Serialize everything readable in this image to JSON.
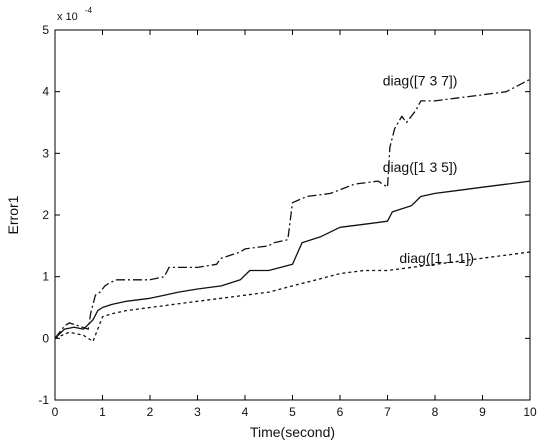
{
  "chart_data": {
    "type": "line",
    "title": "",
    "xlabel": "Time(second)",
    "ylabel": "Error1",
    "y_multiplier_label": "x 10",
    "y_multiplier_exponent": "-4",
    "xlim": [
      0,
      10
    ],
    "ylim": [
      -1,
      5
    ],
    "x_ticks": [
      "0",
      "1",
      "2",
      "3",
      "4",
      "5",
      "6",
      "7",
      "8",
      "9",
      "10"
    ],
    "y_ticks": [
      "-1",
      "0",
      "1",
      "2",
      "3",
      "4",
      "5"
    ],
    "grid": false,
    "colors": {
      "line": "#111111",
      "axes": "#000000"
    },
    "series": [
      {
        "name": "diag([7 3 7])",
        "style": "dash-dot",
        "x": [
          0,
          0.2,
          0.3,
          0.5,
          0.7,
          0.75,
          0.85,
          0.95,
          1.05,
          1.15,
          1.3,
          1.5,
          2.0,
          2.3,
          2.4,
          3.0,
          3.4,
          3.5,
          3.9,
          4.0,
          4.5,
          4.6,
          4.9,
          5.0,
          5.3,
          5.8,
          6.3,
          6.8,
          7.0,
          7.05,
          7.15,
          7.3,
          7.4,
          7.6,
          7.7,
          8.0,
          8.5,
          9.0,
          9.5,
          10.0
        ],
        "y": [
          0.0,
          0.2,
          0.25,
          0.2,
          0.15,
          0.4,
          0.7,
          0.75,
          0.85,
          0.9,
          0.95,
          0.95,
          0.95,
          1.0,
          1.15,
          1.15,
          1.2,
          1.3,
          1.4,
          1.45,
          1.5,
          1.55,
          1.6,
          2.2,
          2.3,
          2.35,
          2.5,
          2.55,
          2.45,
          3.1,
          3.4,
          3.6,
          3.5,
          3.7,
          3.85,
          3.85,
          3.9,
          3.95,
          4.0,
          4.2
        ]
      },
      {
        "name": "diag([1 3 5])",
        "style": "solid",
        "x": [
          0,
          0.2,
          0.4,
          0.6,
          0.8,
          0.9,
          1.0,
          1.2,
          1.5,
          2.0,
          2.3,
          2.6,
          3.0,
          3.5,
          3.9,
          4.1,
          4.5,
          5.0,
          5.2,
          5.6,
          6.0,
          6.5,
          7.0,
          7.1,
          7.5,
          7.7,
          8.0,
          8.5,
          9.0,
          9.5,
          10.0
        ],
        "y": [
          0.0,
          0.15,
          0.18,
          0.15,
          0.3,
          0.45,
          0.5,
          0.55,
          0.6,
          0.65,
          0.7,
          0.75,
          0.8,
          0.85,
          0.95,
          1.1,
          1.1,
          1.2,
          1.55,
          1.65,
          1.8,
          1.85,
          1.9,
          2.05,
          2.15,
          2.3,
          2.35,
          2.4,
          2.45,
          2.5,
          2.55
        ]
      },
      {
        "name": "diag([1 1 1])",
        "style": "dotted",
        "x": [
          0,
          0.3,
          0.6,
          0.8,
          1.0,
          1.2,
          1.5,
          2.0,
          2.5,
          3.0,
          3.5,
          4.0,
          4.5,
          5.0,
          5.5,
          6.0,
          6.5,
          7.0,
          7.5,
          8.0,
          8.5,
          9.0,
          9.5,
          10.0
        ],
        "y": [
          0.0,
          0.1,
          0.05,
          -0.05,
          0.35,
          0.4,
          0.45,
          0.5,
          0.55,
          0.6,
          0.65,
          0.7,
          0.75,
          0.85,
          0.95,
          1.05,
          1.1,
          1.1,
          1.15,
          1.2,
          1.25,
          1.3,
          1.35,
          1.4
        ]
      }
    ],
    "annotations": [
      {
        "text": "diag([7 3 7])",
        "x": 6.9,
        "y": 4.1
      },
      {
        "text": "diag([1 3 5])",
        "x": 6.9,
        "y": 2.7
      },
      {
        "text": "diag([1 1 1])",
        "x": 7.25,
        "y": 1.22
      }
    ]
  }
}
